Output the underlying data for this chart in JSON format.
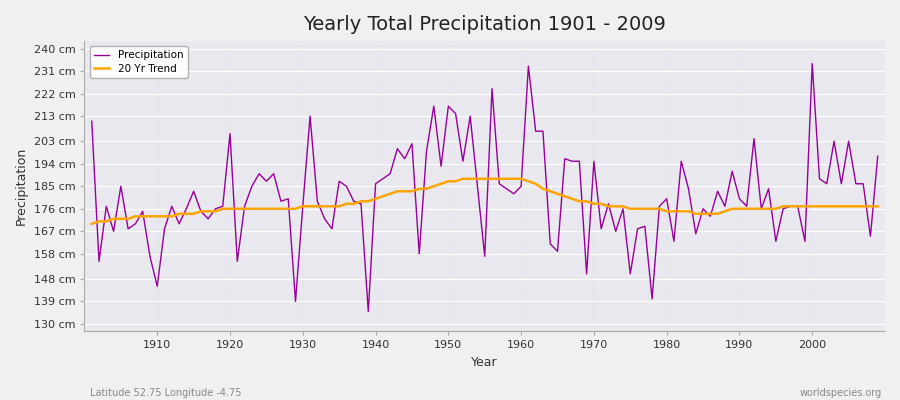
{
  "title": "Yearly Total Precipitation 1901 - 2009",
  "xlabel": "Year",
  "ylabel": "Precipitation",
  "subtitle_left": "Latitude 52.75 Longitude -4.75",
  "subtitle_right": "worldspecies.org",
  "years": [
    1901,
    1902,
    1903,
    1904,
    1905,
    1906,
    1907,
    1908,
    1909,
    1910,
    1911,
    1912,
    1913,
    1914,
    1915,
    1916,
    1917,
    1918,
    1919,
    1920,
    1921,
    1922,
    1923,
    1924,
    1925,
    1926,
    1927,
    1928,
    1929,
    1930,
    1931,
    1932,
    1933,
    1934,
    1935,
    1936,
    1937,
    1938,
    1939,
    1940,
    1941,
    1942,
    1943,
    1944,
    1945,
    1946,
    1947,
    1948,
    1949,
    1950,
    1951,
    1952,
    1953,
    1954,
    1955,
    1956,
    1957,
    1958,
    1959,
    1960,
    1961,
    1962,
    1963,
    1964,
    1965,
    1966,
    1967,
    1968,
    1969,
    1970,
    1971,
    1972,
    1973,
    1974,
    1975,
    1976,
    1977,
    1978,
    1979,
    1980,
    1981,
    1982,
    1983,
    1984,
    1985,
    1986,
    1987,
    1988,
    1989,
    1990,
    1991,
    1992,
    1993,
    1994,
    1995,
    1996,
    1997,
    1998,
    1999,
    2000,
    2001,
    2002,
    2003,
    2004,
    2005,
    2006,
    2007,
    2008,
    2009
  ],
  "precip": [
    211,
    155,
    177,
    167,
    185,
    168,
    170,
    175,
    157,
    145,
    168,
    177,
    170,
    176,
    183,
    175,
    172,
    176,
    177,
    206,
    155,
    177,
    185,
    190,
    187,
    190,
    179,
    180,
    139,
    177,
    213,
    179,
    172,
    168,
    187,
    185,
    179,
    178,
    135,
    186,
    188,
    190,
    200,
    196,
    202,
    158,
    199,
    217,
    193,
    217,
    214,
    195,
    213,
    185,
    157,
    224,
    186,
    184,
    182,
    185,
    233,
    207,
    207,
    162,
    159,
    196,
    195,
    195,
    150,
    195,
    168,
    178,
    167,
    176,
    150,
    168,
    169,
    140,
    177,
    180,
    163,
    195,
    184,
    166,
    176,
    173,
    183,
    177,
    191,
    180,
    177,
    204,
    176,
    184,
    163,
    176,
    177,
    177,
    163,
    234,
    188,
    186,
    203,
    186,
    203,
    186,
    186,
    165,
    197
  ],
  "trend": [
    170,
    171,
    171,
    172,
    172,
    172,
    173,
    173,
    173,
    173,
    173,
    173,
    174,
    174,
    174,
    175,
    175,
    175,
    176,
    176,
    176,
    176,
    176,
    176,
    176,
    176,
    176,
    176,
    176,
    177,
    177,
    177,
    177,
    177,
    177,
    178,
    178,
    179,
    179,
    180,
    181,
    182,
    183,
    183,
    183,
    184,
    184,
    185,
    186,
    187,
    187,
    188,
    188,
    188,
    188,
    188,
    188,
    188,
    188,
    188,
    187,
    186,
    184,
    183,
    182,
    181,
    180,
    179,
    179,
    178,
    178,
    177,
    177,
    177,
    176,
    176,
    176,
    176,
    176,
    175,
    175,
    175,
    175,
    174,
    174,
    174,
    174,
    175,
    176,
    176,
    176,
    176,
    176,
    176,
    176,
    177,
    177,
    177,
    177,
    177,
    177,
    177,
    177,
    177,
    177,
    177,
    177,
    177,
    177
  ],
  "yticks": [
    130,
    139,
    148,
    158,
    167,
    176,
    185,
    194,
    203,
    213,
    222,
    231,
    240
  ],
  "ylim": [
    127,
    243
  ],
  "xlim": [
    1900,
    2010
  ],
  "precip_color": "#990099",
  "trend_color": "#FFA500",
  "bg_color": "#F0F0F0",
  "plot_bg_color": "#E8E8EE",
  "grid_color_h": "#FFFFFF",
  "grid_color_v": "#D8D8E0",
  "title_fontsize": 14,
  "label_fontsize": 9,
  "tick_fontsize": 8
}
